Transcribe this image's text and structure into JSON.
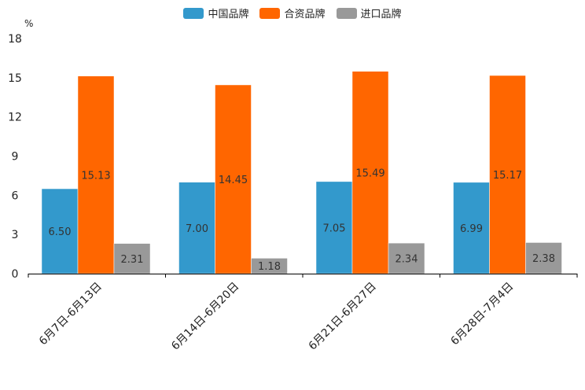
{
  "chart_data": {
    "type": "bar",
    "title": "",
    "ylabel": "%",
    "xlabel": "",
    "ylim": [
      0,
      18
    ],
    "yticks": [
      0,
      3,
      6,
      9,
      12,
      15,
      18
    ],
    "categories": [
      "6月7日-6月13日",
      "6月14日-6月20日",
      "6月21日-6月27日",
      "6月28日-7月4日"
    ],
    "series": [
      {
        "name": "中国品牌",
        "color": "#3399cc",
        "values": [
          6.5,
          7.0,
          7.05,
          6.99
        ],
        "labels": [
          "6.50",
          "7.00",
          "7.05",
          "6.99"
        ]
      },
      {
        "name": "合资品牌",
        "color": "#ff6600",
        "values": [
          15.13,
          14.45,
          15.49,
          15.17
        ],
        "labels": [
          "15.13",
          "14.45",
          "15.49",
          "15.17"
        ]
      },
      {
        "name": "进口品牌",
        "color": "#999999",
        "values": [
          2.31,
          1.18,
          2.34,
          2.38
        ],
        "labels": [
          "2.31",
          "1.18",
          "2.34",
          "2.38"
        ]
      }
    ],
    "legend_position": "top-center",
    "grid": false
  }
}
